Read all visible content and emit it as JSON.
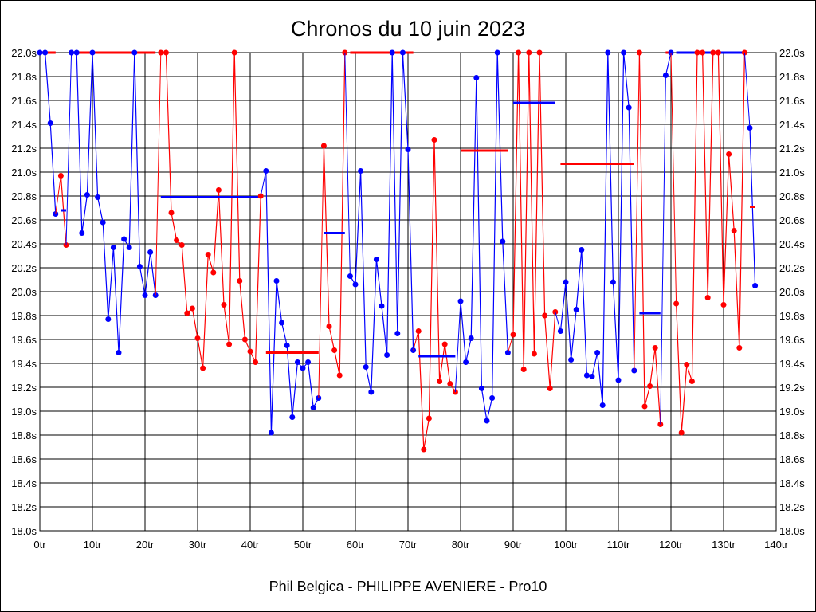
{
  "chart_data": {
    "type": "line",
    "title": "Chronos du 10 juin 2023",
    "footer": "Phil Belgica - PHILIPPE AVENIERE - Pro10",
    "xlabel": "",
    "ylabel": "",
    "xlim": [
      0,
      140
    ],
    "ylim": [
      18.0,
      22.0
    ],
    "grid": true,
    "x_ticks": [
      "0tr",
      "10tr",
      "20tr",
      "30tr",
      "40tr",
      "50tr",
      "60tr",
      "70tr",
      "80tr",
      "90tr",
      "100tr",
      "110tr",
      "120tr",
      "130tr",
      "140tr"
    ],
    "y_ticks": [
      "18.0s",
      "18.2s",
      "18.4s",
      "18.6s",
      "18.8s",
      "19.0s",
      "19.2s",
      "19.4s",
      "19.6s",
      "19.8s",
      "20.0s",
      "20.2s",
      "20.4s",
      "20.6s",
      "20.8s",
      "21.0s",
      "21.2s",
      "21.4s",
      "21.6s",
      "21.8s",
      "22.0s"
    ],
    "colors": {
      "blue": "#0000ff",
      "red": "#ff0000"
    },
    "stints": [
      {
        "color": "blue",
        "start_lap": 0,
        "times": [
          22.0,
          22.0,
          21.41,
          20.65
        ],
        "avg": 22.0
      },
      {
        "color": "red",
        "start_lap": 4,
        "times": [
          20.97,
          20.39
        ],
        "avg": 20.68
      },
      {
        "color": "blue",
        "start_lap": 6,
        "times": [
          22.0,
          22.0,
          20.49,
          20.81,
          22.0,
          20.79,
          20.58,
          19.77,
          20.37,
          19.49,
          20.44,
          20.37,
          22.0,
          20.21,
          19.97,
          20.33,
          19.97
        ],
        "avg": 22.0
      },
      {
        "color": "red",
        "start_lap": 23,
        "times": [
          22.0,
          22.0,
          20.66,
          20.43,
          20.39,
          19.82,
          19.86,
          19.61,
          19.36,
          20.31,
          20.16,
          20.85,
          19.89,
          19.56,
          22.0,
          20.09,
          19.6,
          19.5,
          19.41,
          20.8
        ],
        "avg": 20.79
      },
      {
        "color": "blue",
        "start_lap": 43,
        "times": [
          21.01,
          18.82,
          20.09,
          19.74,
          19.55,
          18.95,
          19.41,
          19.36,
          19.41,
          19.03,
          19.11
        ],
        "avg": 19.49
      },
      {
        "color": "red",
        "start_lap": 54,
        "times": [
          21.22,
          19.71,
          19.51,
          19.3,
          22.0
        ],
        "avg": 20.49
      },
      {
        "color": "blue",
        "start_lap": 59,
        "times": [
          20.13,
          20.06,
          21.01,
          19.37,
          19.16,
          20.27,
          19.88,
          19.47,
          22.0,
          19.65,
          22.0,
          21.19,
          19.51
        ],
        "avg": 22.0
      },
      {
        "color": "red",
        "start_lap": 72,
        "times": [
          19.67,
          18.68,
          18.94,
          21.27,
          19.25,
          19.56,
          19.23,
          19.16
        ],
        "avg": 19.46
      },
      {
        "color": "blue",
        "start_lap": 80,
        "times": [
          19.92,
          19.41,
          19.61,
          21.79,
          19.19,
          18.92,
          19.11,
          22.0,
          20.42,
          19.49
        ],
        "avg": 21.18
      },
      {
        "color": "red",
        "start_lap": 90,
        "times": [
          19.64,
          22.0,
          19.35,
          22.0,
          19.48,
          22.0,
          19.8,
          19.19,
          19.83
        ],
        "avg": 21.58
      },
      {
        "color": "blue",
        "start_lap": 99,
        "times": [
          19.67,
          20.08,
          19.43,
          19.85,
          20.35,
          19.3,
          19.29,
          19.49,
          19.05,
          22.0,
          20.08,
          19.26,
          22.0,
          21.54,
          19.34
        ],
        "avg": 21.07
      },
      {
        "color": "red",
        "start_lap": 114,
        "times": [
          22.0,
          19.04,
          19.21,
          19.53,
          18.89
        ],
        "avg": 19.82
      },
      {
        "color": "blue",
        "start_lap": 119,
        "times": [
          21.81,
          22.0
        ],
        "avg": 22.0
      },
      {
        "color": "red",
        "start_lap": 121,
        "times": [
          19.9,
          18.82,
          19.39,
          19.25,
          22.0,
          22.0,
          19.95,
          22.0,
          22.0,
          19.89,
          21.15,
          20.51,
          19.53,
          22.0
        ],
        "avg": 22.0
      },
      {
        "color": "blue",
        "start_lap": 135,
        "times": [
          21.37,
          20.05
        ],
        "avg": 20.71
      }
    ]
  }
}
